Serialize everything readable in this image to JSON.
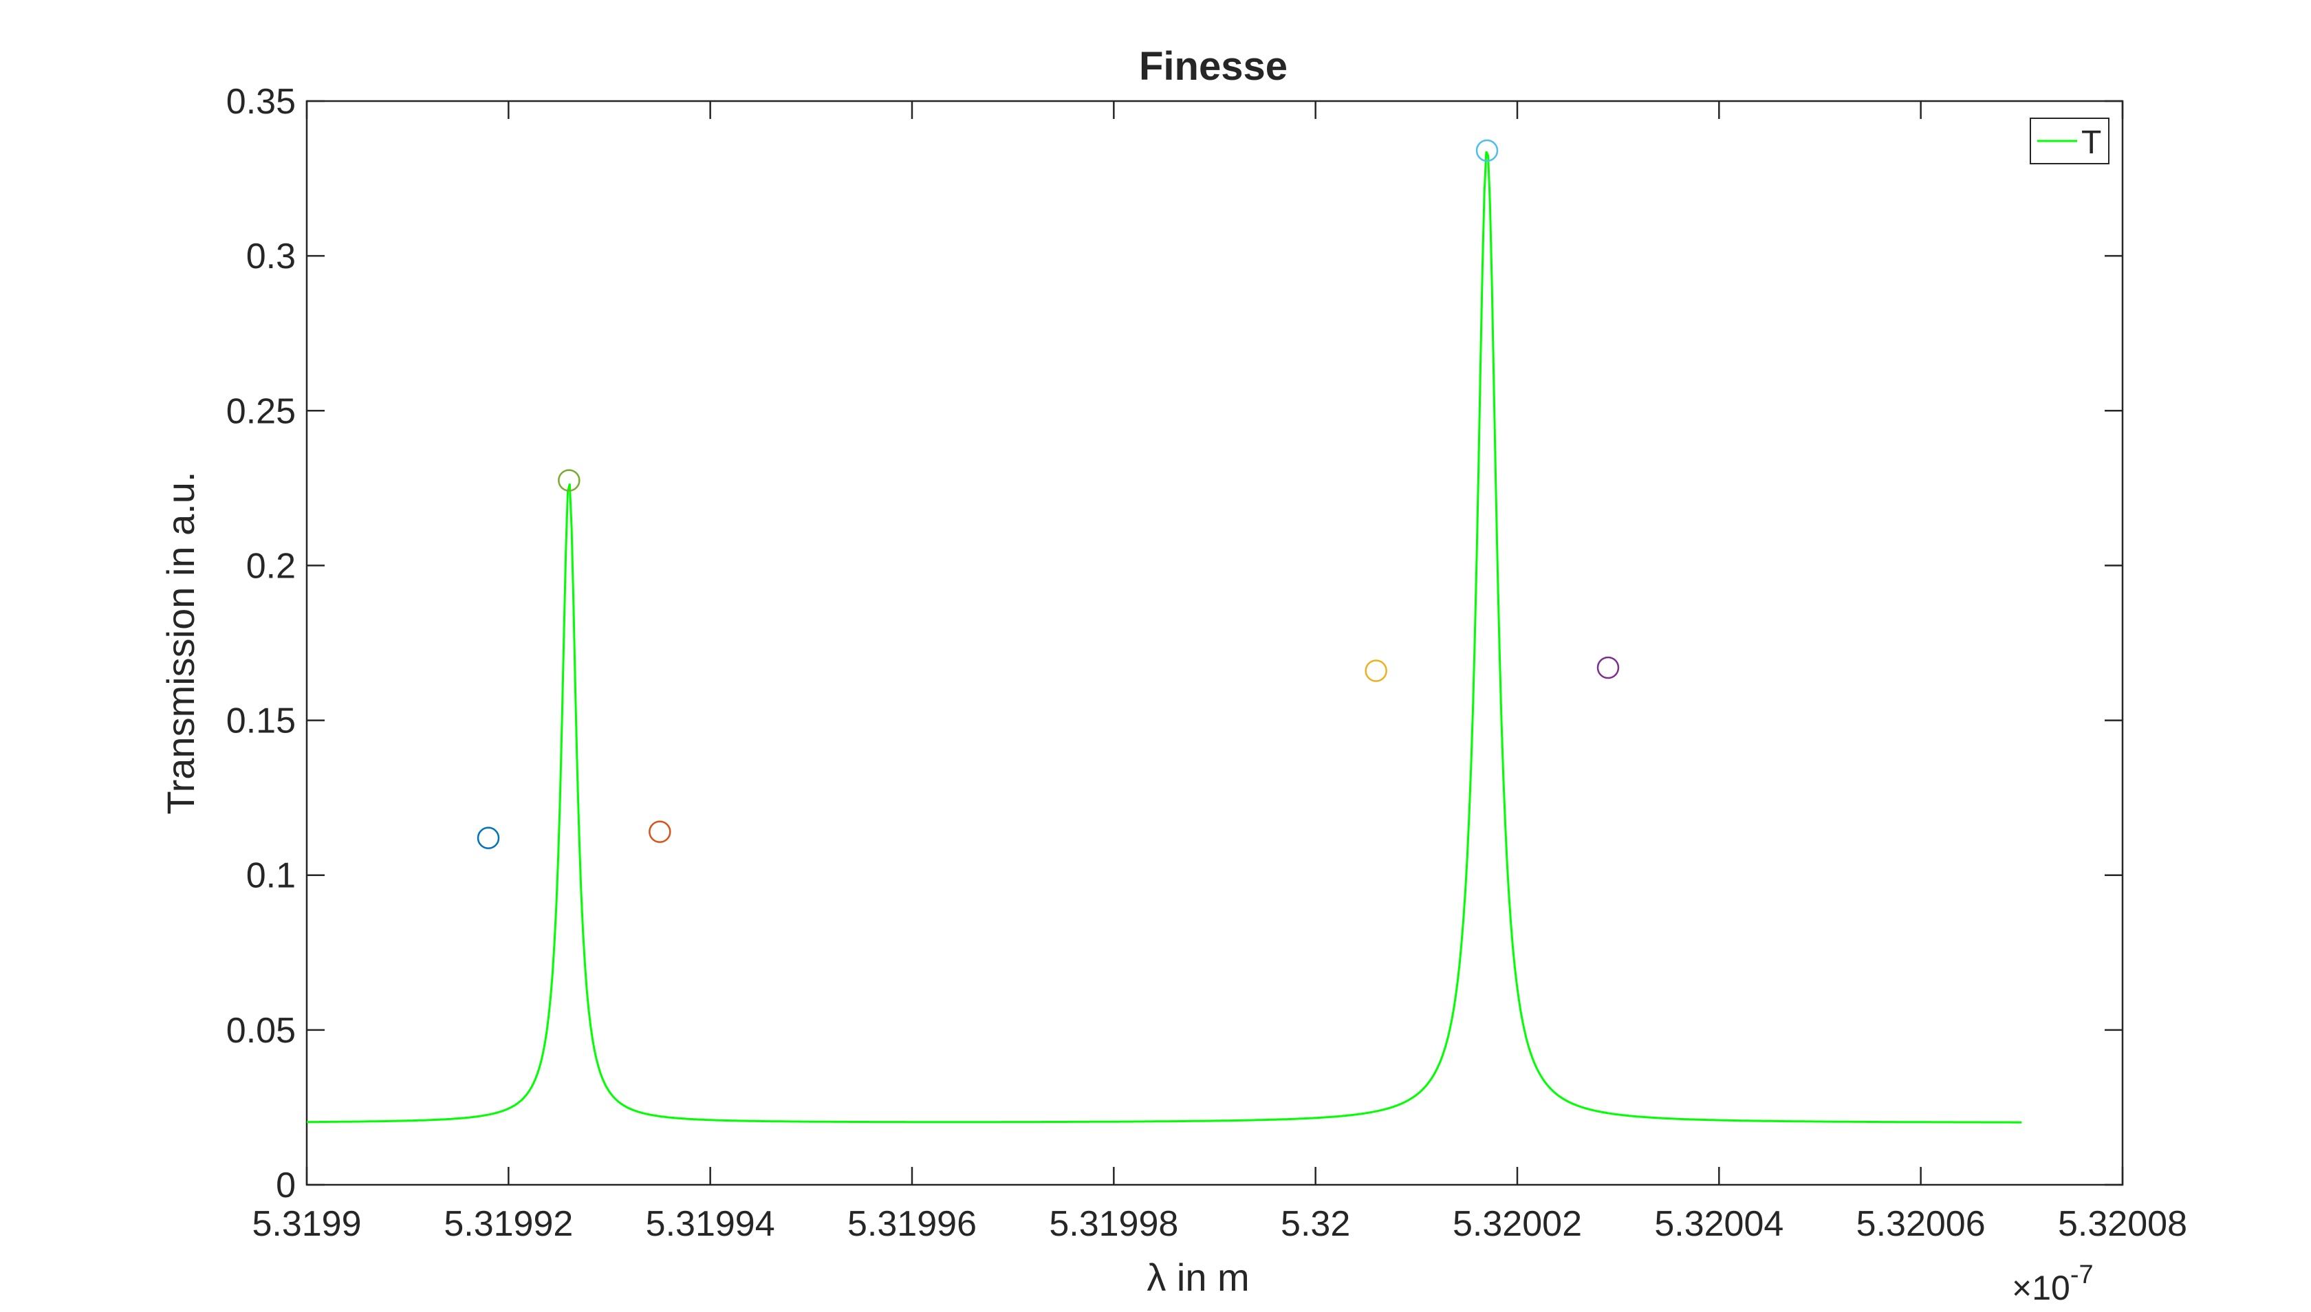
{
  "chart_data": {
    "type": "line",
    "title": "Finesse",
    "xlabel": "λ in m",
    "ylabel": "Transmission in a.u.",
    "x_multiplier_label": "×10",
    "x_multiplier_exponent": "-7",
    "xlim": [
      5.3199,
      5.32008
    ],
    "ylim": [
      0,
      0.35
    ],
    "x_ticks": [
      5.3199,
      5.31992,
      5.31994,
      5.31996,
      5.31998,
      5.32,
      5.32002,
      5.32004,
      5.32006,
      5.32008
    ],
    "x_tick_labels": [
      "5.3199",
      "5.31992",
      "5.31994",
      "5.31996",
      "5.31998",
      "5.32",
      "5.32002",
      "5.32004",
      "5.32006",
      "5.32008"
    ],
    "y_ticks": [
      0,
      0.05,
      0.1,
      0.15,
      0.2,
      0.25,
      0.3,
      0.35
    ],
    "y_tick_labels": [
      "0",
      "0.05",
      "0.1",
      "0.15",
      "0.2",
      "0.25",
      "0.3",
      "0.35"
    ],
    "grid": false,
    "legend": {
      "position": "top-right",
      "entries": [
        "T"
      ]
    },
    "series": [
      {
        "name": "T",
        "color": "#00ff00",
        "peaks": [
          {
            "center": 5.319926,
            "height": 0.2275,
            "hwhm": 9e-07
          },
          {
            "center": 5.320017,
            "height": 0.335,
            "hwhm": 1.2e-06
          }
        ],
        "baseline": 0.02,
        "x_range": [
          5.3199,
          5.32007
        ]
      }
    ],
    "markers": [
      {
        "x": 5.319918,
        "y": 0.112,
        "color": "#0072bd"
      },
      {
        "x": 5.319926,
        "y": 0.2275,
        "color": "#77ac30"
      },
      {
        "x": 5.319935,
        "y": 0.114,
        "color": "#d95319"
      },
      {
        "x": 5.320006,
        "y": 0.166,
        "color": "#edb120"
      },
      {
        "x": 5.320017,
        "y": 0.334,
        "color": "#4dbeee"
      },
      {
        "x": 5.320029,
        "y": 0.167,
        "color": "#7e2f8e"
      }
    ]
  }
}
